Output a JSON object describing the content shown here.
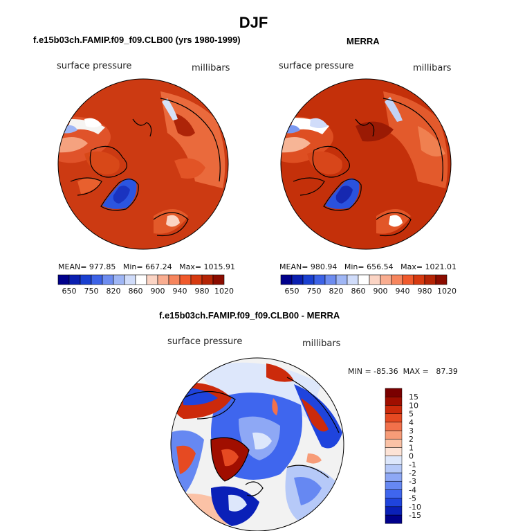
{
  "page_title": "DJF",
  "panels": [
    {
      "heading": "f.e15b03ch.FAMIP.f09_f09.CLB00 (yrs 1980-1999)",
      "variable": "surface pressure",
      "units": "millibars",
      "stats": "MEAN= 977.85   Min= 667.24   Max= 1015.91"
    },
    {
      "heading": "MERRA",
      "variable": "surface pressure",
      "units": "millibars",
      "stats": "MEAN= 980.94   Min= 656.54   Max= 1021.01"
    }
  ],
  "diff_panel": {
    "heading": "f.e15b03ch.FAMIP.f09_f09.CLB00 - MERRA",
    "variable": "surface pressure",
    "units": "millibars",
    "stats": "MIN = -85.36  MAX =   87.39"
  },
  "chart_data": [
    {
      "type": "heatmap",
      "projection": "north polar stereographic",
      "title": "f.e15b03ch.FAMIP.f09_f09.CLB00 (yrs 1980-1999)",
      "field": "surface pressure",
      "units": "millibars",
      "mean": 977.85,
      "min": 667.24,
      "max": 1015.91,
      "colorbar": {
        "orientation": "horizontal",
        "colors": [
          "#00008b",
          "#0a1fb0",
          "#1a40d0",
          "#3c62e6",
          "#6d8cf0",
          "#9fb6f5",
          "#d0dcfa",
          "#ffffff",
          "#fbd4c4",
          "#f9ad90",
          "#f6855d",
          "#f05a2c",
          "#d63a10",
          "#b42405",
          "#8b0c00"
        ],
        "tick_labels": [
          "650",
          "750",
          "820",
          "860",
          "900",
          "940",
          "980",
          "1020"
        ]
      }
    },
    {
      "type": "heatmap",
      "projection": "north polar stereographic",
      "title": "MERRA",
      "field": "surface pressure",
      "units": "millibars",
      "mean": 980.94,
      "min": 656.54,
      "max": 1021.01,
      "colorbar": {
        "orientation": "horizontal",
        "colors": [
          "#00008b",
          "#0a1fb0",
          "#1a40d0",
          "#3c62e6",
          "#6d8cf0",
          "#9fb6f5",
          "#d0dcfa",
          "#ffffff",
          "#fbd4c4",
          "#f9ad90",
          "#f6855d",
          "#f05a2c",
          "#d63a10",
          "#b42405",
          "#8b0c00"
        ],
        "tick_labels": [
          "650",
          "750",
          "820",
          "860",
          "900",
          "940",
          "980",
          "1020"
        ]
      }
    },
    {
      "type": "heatmap",
      "projection": "north polar stereographic",
      "title": "f.e15b03ch.FAMIP.f09_f09.CLB00 - MERRA",
      "field": "surface pressure",
      "units": "millibars",
      "min": -85.36,
      "max": 87.39,
      "colorbar": {
        "orientation": "vertical",
        "colors": [
          "#00008b",
          "#0a20b8",
          "#1f44dd",
          "#3f66ee",
          "#6688f2",
          "#8ea8f5",
          "#b6c9f8",
          "#dde7fb",
          "#fde3d6",
          "#fbc2a6",
          "#f79c78",
          "#f2714b",
          "#e64a22",
          "#cc2a0b",
          "#a00e00",
          "#7a0000"
        ],
        "tick_labels": [
          "-15",
          "-10",
          "-5",
          "-4",
          "-3",
          "-2",
          "-1",
          "0",
          "1",
          "2",
          "3",
          "4",
          "5",
          "10",
          "15"
        ]
      }
    }
  ]
}
